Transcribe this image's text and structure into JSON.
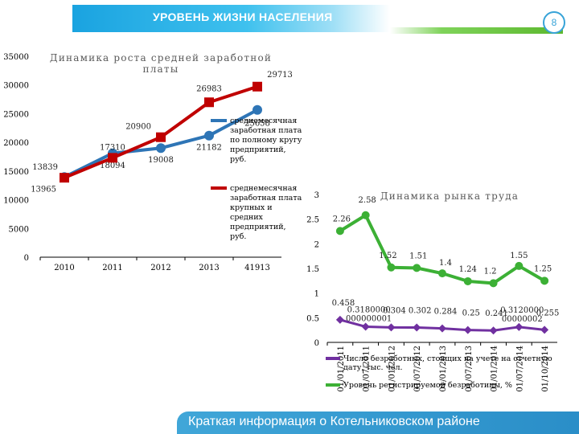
{
  "header": {
    "title": "УРОВЕНЬ ЖИЗНИ НАСЕЛЕНИЯ",
    "page_number": "8"
  },
  "footer": {
    "text": "Краткая информация о Котельниковском районе"
  },
  "colors": {
    "header_blue": "#1aa3e0",
    "footer_blue": "#2a8ec8",
    "accent_green": "#5cb82e",
    "blue_series": "#2e75b6",
    "red_series": "#c00000",
    "green_series": "#3cb035",
    "purple_series": "#7030a0"
  },
  "chart_data": [
    {
      "type": "line",
      "title_lines": [
        "Динамика роста средней заработной",
        "платы"
      ],
      "categories": [
        "2010",
        "2011",
        "2012",
        "2013",
        "41913"
      ],
      "y_ticks": [
        "0",
        "5000",
        "10000",
        "15000",
        "20000",
        "25000",
        "30000",
        "35000"
      ],
      "ylim": [
        0,
        35000
      ],
      "legend_position": "right",
      "series": [
        {
          "name_lines": [
            "среднемесячная",
            "заработная плата",
            "по полному кругу",
            "предприятий,",
            "руб."
          ],
          "color": "#2e75b6",
          "values": [
            13965,
            18094,
            19008,
            21182,
            25658
          ],
          "labels": [
            "13965",
            "18094",
            "19008",
            "21182",
            "25658"
          ]
        },
        {
          "name_lines": [
            "среднемесячная",
            "заработная плата",
            "крупных и",
            "средних",
            "предприятий,",
            "руб."
          ],
          "color": "#c00000",
          "values": [
            13839,
            17310,
            20900,
            26983,
            29713
          ],
          "labels": [
            "13839",
            "17310",
            "20900",
            "26983",
            "29713"
          ]
        }
      ]
    },
    {
      "type": "line",
      "title": "Динамика рынка труда",
      "categories": [
        "01/01/2011",
        "01/07/2011",
        "01/01/2012",
        "01/07/2012",
        "01/01/2013",
        "01/07/2013",
        "01/01/2014",
        "01/07/2014",
        "01/10/2014"
      ],
      "y_ticks": [
        "0",
        "0.5",
        "1",
        "1.5",
        "2",
        "2.5",
        "3"
      ],
      "ylim": [
        0,
        3
      ],
      "legend_position": "bottom",
      "series": [
        {
          "name_lines": [
            "Число безработных, стоящих на учете на отчетную",
            "дату, тыс. чел."
          ],
          "color": "#7030a0",
          "values": [
            0.458,
            0.318,
            0.304,
            0.302,
            0.284,
            0.25,
            0.241,
            0.312,
            0.255
          ],
          "labels": [
            "0.458",
            "0.3180000\n000000001",
            "0.304",
            "0.302",
            "0.284",
            "0.25",
            "0.241",
            "0.3120000\n00000002",
            "0.255"
          ]
        },
        {
          "name_lines": [
            "Уровень регистрируемой безработицы, %"
          ],
          "color": "#3cb035",
          "values": [
            2.26,
            2.58,
            1.52,
            1.51,
            1.4,
            1.24,
            1.2,
            1.55,
            1.25
          ],
          "labels": [
            "2.26",
            "2.58",
            "1.52",
            "1.51",
            "1.4",
            "1.24",
            "1.2",
            "1.55",
            "1.25"
          ]
        }
      ]
    }
  ]
}
